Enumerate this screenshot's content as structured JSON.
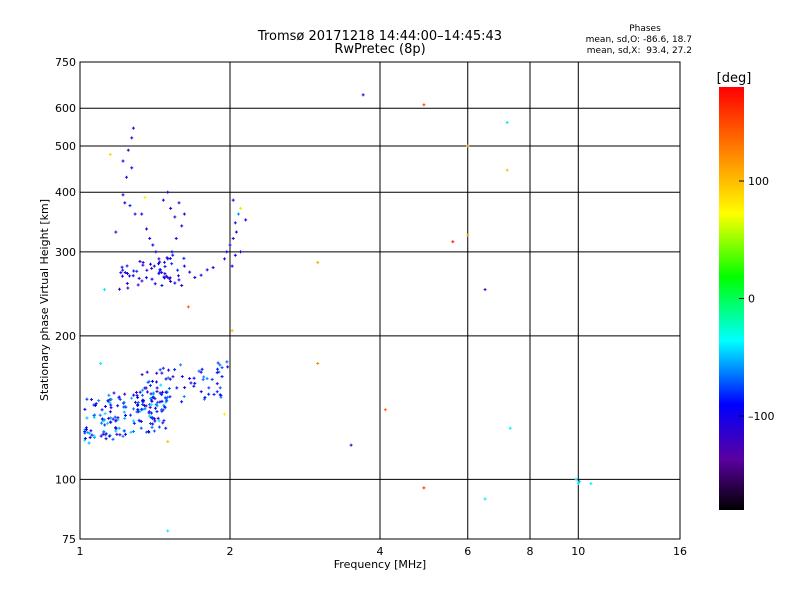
{
  "chart_data": {
    "type": "scatter",
    "title": "Tromsø 20171218 14:44:00–14:45:43",
    "subtitle": "RwPretec (8p)",
    "xlabel": "Frequency [MHz]",
    "ylabel": "Stationary phase Virtual Height [km]",
    "x_scale": "log",
    "y_scale": "log",
    "xlim": [
      1,
      16
    ],
    "ylim": [
      75,
      750
    ],
    "grid": true,
    "x_ticks": [
      1,
      2,
      4,
      6,
      8,
      10,
      16
    ],
    "x_tick_labels": [
      "1",
      "2",
      "4",
      "6",
      "8",
      "10",
      "16"
    ],
    "y_ticks": [
      75,
      100,
      200,
      300,
      400,
      500,
      600,
      750
    ],
    "y_tick_labels": [
      "75",
      "100",
      "200",
      "300",
      "400",
      "500",
      "600",
      "750"
    ],
    "stats": {
      "header": "Phases",
      "o_line": "mean, sd,O: -86.6, 18.7",
      "x_line": "mean, sd,X:  93.4, 27.2"
    },
    "colorbar": {
      "label": "[deg]",
      "range": [
        -180,
        180
      ],
      "ticks": [
        100,
        0,
        -100
      ],
      "tick_labels": [
        "100",
        "0",
        "–100"
      ]
    },
    "points": [
      {
        "x": 1.28,
        "y": 545,
        "phase": -110
      },
      {
        "x": 1.27,
        "y": 520,
        "phase": -105
      },
      {
        "x": 1.25,
        "y": 490,
        "phase": -115
      },
      {
        "x": 1.22,
        "y": 465,
        "phase": -100
      },
      {
        "x": 1.27,
        "y": 450,
        "phase": -95
      },
      {
        "x": 1.24,
        "y": 430,
        "phase": -120
      },
      {
        "x": 1.22,
        "y": 395,
        "phase": -110
      },
      {
        "x": 1.23,
        "y": 380,
        "phase": -90
      },
      {
        "x": 1.26,
        "y": 375,
        "phase": -85
      },
      {
        "x": 1.29,
        "y": 360,
        "phase": -105
      },
      {
        "x": 1.33,
        "y": 360,
        "phase": -100
      },
      {
        "x": 1.35,
        "y": 390,
        "phase": 80
      },
      {
        "x": 1.18,
        "y": 330,
        "phase": -110
      },
      {
        "x": 1.36,
        "y": 335,
        "phase": -95
      },
      {
        "x": 1.38,
        "y": 320,
        "phase": -105
      },
      {
        "x": 1.4,
        "y": 310,
        "phase": -90
      },
      {
        "x": 1.42,
        "y": 300,
        "phase": -100
      },
      {
        "x": 1.44,
        "y": 290,
        "phase": -115
      },
      {
        "x": 1.41,
        "y": 280,
        "phase": -110
      },
      {
        "x": 1.45,
        "y": 275,
        "phase": -95
      },
      {
        "x": 1.48,
        "y": 270,
        "phase": -100
      },
      {
        "x": 1.5,
        "y": 265,
        "phase": -120
      },
      {
        "x": 1.52,
        "y": 260,
        "phase": -105
      },
      {
        "x": 1.55,
        "y": 258,
        "phase": -90
      },
      {
        "x": 1.58,
        "y": 262,
        "phase": -100
      },
      {
        "x": 1.6,
        "y": 255,
        "phase": -110
      },
      {
        "x": 1.5,
        "y": 290,
        "phase": -100
      },
      {
        "x": 1.53,
        "y": 300,
        "phase": -95
      },
      {
        "x": 1.56,
        "y": 320,
        "phase": -105
      },
      {
        "x": 1.6,
        "y": 340,
        "phase": -100
      },
      {
        "x": 1.55,
        "y": 355,
        "phase": -115
      },
      {
        "x": 1.52,
        "y": 370,
        "phase": -90
      },
      {
        "x": 1.58,
        "y": 380,
        "phase": -100
      },
      {
        "x": 1.62,
        "y": 360,
        "phase": -110
      },
      {
        "x": 1.5,
        "y": 400,
        "phase": -105
      },
      {
        "x": 1.47,
        "y": 385,
        "phase": -95
      },
      {
        "x": 1.44,
        "y": 270,
        "phase": -100
      },
      {
        "x": 1.46,
        "y": 255,
        "phase": -85
      },
      {
        "x": 1.62,
        "y": 280,
        "phase": -100
      },
      {
        "x": 1.66,
        "y": 272,
        "phase": -110
      },
      {
        "x": 1.7,
        "y": 265,
        "phase": -95
      },
      {
        "x": 1.75,
        "y": 268,
        "phase": -100
      },
      {
        "x": 1.8,
        "y": 275,
        "phase": -105
      },
      {
        "x": 1.85,
        "y": 278,
        "phase": -100
      },
      {
        "x": 1.95,
        "y": 290,
        "phase": -110
      },
      {
        "x": 1.97,
        "y": 300,
        "phase": -100
      },
      {
        "x": 2.0,
        "y": 310,
        "phase": -95
      },
      {
        "x": 2.03,
        "y": 320,
        "phase": -105
      },
      {
        "x": 2.05,
        "y": 295,
        "phase": -100
      },
      {
        "x": 2.02,
        "y": 280,
        "phase": -90
      },
      {
        "x": 2.06,
        "y": 330,
        "phase": -100
      },
      {
        "x": 2.05,
        "y": 345,
        "phase": -110
      },
      {
        "x": 2.08,
        "y": 360,
        "phase": -60
      },
      {
        "x": 2.1,
        "y": 370,
        "phase": 60
      },
      {
        "x": 2.03,
        "y": 385,
        "phase": -100
      },
      {
        "x": 2.15,
        "y": 350,
        "phase": -95
      },
      {
        "x": 2.1,
        "y": 300,
        "phase": -100
      },
      {
        "x": 1.15,
        "y": 480,
        "phase": 90
      },
      {
        "x": 1.12,
        "y": 250,
        "phase": -40
      },
      {
        "x": 1.65,
        "y": 230,
        "phase": 140
      },
      {
        "x": 2.02,
        "y": 205,
        "phase": 100
      },
      {
        "x": 3.0,
        "y": 285,
        "phase": 110
      },
      {
        "x": 3.0,
        "y": 175,
        "phase": 120
      },
      {
        "x": 3.7,
        "y": 640,
        "phase": -110
      },
      {
        "x": 4.9,
        "y": 610,
        "phase": 150
      },
      {
        "x": 5.6,
        "y": 315,
        "phase": 170
      },
      {
        "x": 6.0,
        "y": 325,
        "phase": 110
      },
      {
        "x": 6.0,
        "y": 500,
        "phase": 110
      },
      {
        "x": 6.5,
        "y": 250,
        "phase": -130
      },
      {
        "x": 7.2,
        "y": 560,
        "phase": -40
      },
      {
        "x": 7.2,
        "y": 445,
        "phase": 100
      },
      {
        "x": 4.1,
        "y": 140,
        "phase": 140
      },
      {
        "x": 3.5,
        "y": 118,
        "phase": -120
      },
      {
        "x": 7.3,
        "y": 128,
        "phase": -40
      },
      {
        "x": 4.9,
        "y": 96,
        "phase": 160
      },
      {
        "x": 6.5,
        "y": 91,
        "phase": -40
      },
      {
        "x": 9.9,
        "y": 100,
        "phase": -40
      },
      {
        "x": 10.0,
        "y": 98,
        "phase": -30
      },
      {
        "x": 10.05,
        "y": 99,
        "phase": -50
      },
      {
        "x": 10.6,
        "y": 98,
        "phase": -40
      },
      {
        "x": 1.5,
        "y": 78,
        "phase": -40
      },
      {
        "x": 1.5,
        "y": 120,
        "phase": 100
      },
      {
        "x": 1.95,
        "y": 137,
        "phase": 80
      },
      {
        "x": 1.1,
        "y": 175,
        "phase": -40
      }
    ],
    "clusters": [
      {
        "x_range": [
          1.02,
          1.5
        ],
        "y_range": [
          118,
          160
        ],
        "count": 180,
        "phase_range": [
          -120,
          -40
        ]
      },
      {
        "x_range": [
          1.3,
          1.98
        ],
        "y_range": [
          140,
          180
        ],
        "count": 70,
        "phase_range": [
          -120,
          -60
        ]
      },
      {
        "x_range": [
          1.2,
          1.65
        ],
        "y_range": [
          250,
          300
        ],
        "count": 45,
        "phase_range": [
          -120,
          -80
        ]
      }
    ]
  }
}
